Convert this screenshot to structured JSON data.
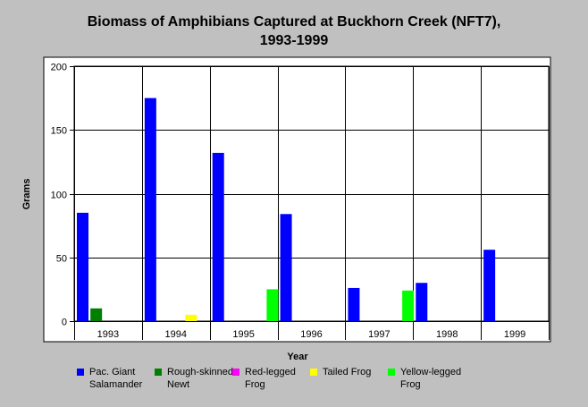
{
  "chart_data": {
    "type": "bar",
    "title_line1": "Biomass of Amphibians Captured at Buckhorn Creek (NFT7),",
    "title_line2": "1993-1999",
    "xlabel": "Year",
    "ylabel": "Grams",
    "ylim": [
      0,
      200
    ],
    "yticks": [
      0,
      50,
      100,
      150,
      200
    ],
    "grid": true,
    "legend_position": "bottom",
    "categories": [
      "1993",
      "1994",
      "1995",
      "1996",
      "1997",
      "1998",
      "1999"
    ],
    "series": [
      {
        "name": "Pac. Giant Salamander",
        "color": "#0000ff",
        "values": [
          85,
          175,
          132,
          84,
          26,
          30,
          56
        ]
      },
      {
        "name": "Rough-skinned Newt",
        "color": "#007f00",
        "values": [
          10,
          0,
          0,
          0,
          0,
          0,
          0
        ]
      },
      {
        "name": "Red-legged Frog",
        "color": "#ff00ff",
        "values": [
          0,
          0,
          0,
          0,
          0,
          0,
          0
        ]
      },
      {
        "name": "Tailed Frog",
        "color": "#ffff00",
        "values": [
          0,
          5,
          0,
          0,
          0,
          0,
          0
        ]
      },
      {
        "name": "Yellow-legged Frog",
        "color": "#00ff00",
        "values": [
          0,
          0,
          25,
          0,
          24,
          0,
          0
        ]
      }
    ]
  }
}
